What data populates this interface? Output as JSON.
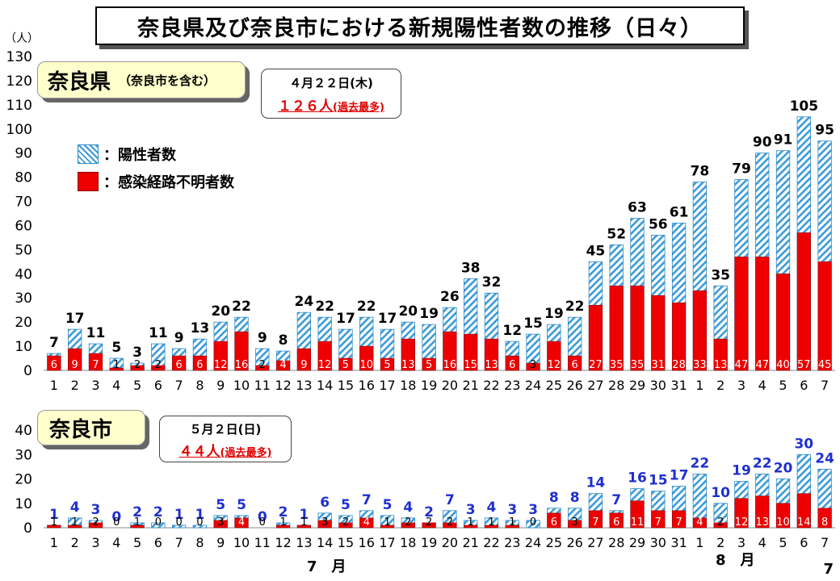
{
  "title": "奈良県及び奈良市における新規陽性者数の推移（日々）",
  "unit_label": "（人）",
  "legend": {
    "positive": "：陽性者数",
    "unknown": "：感染経路不明者数"
  },
  "month_labels": [
    "7　月",
    "8　月"
  ],
  "page_number": "7",
  "colors": {
    "positive_stripe": "#3a9bd8",
    "unknown": "#ee0000",
    "total_top_prefecture": "#000000",
    "total_top_city": "#1f2fd0"
  },
  "prefecture": {
    "label": "奈良県",
    "sublabel": "（奈良市を含む）",
    "callout_date": "４月２２日(木)",
    "callout_record": "１２６人",
    "callout_note": "(過去最多)"
  },
  "city": {
    "label": "奈良市",
    "callout_date": "５月２日(日)",
    "callout_record": "４４人",
    "callout_note": "(過去最多)"
  },
  "chart_data": [
    {
      "type": "bar",
      "name": "奈良県",
      "categories": [
        "1",
        "2",
        "3",
        "4",
        "5",
        "6",
        "7",
        "8",
        "9",
        "10",
        "11",
        "12",
        "13",
        "14",
        "15",
        "16",
        "17",
        "18",
        "19",
        "20",
        "21",
        "22",
        "23",
        "24",
        "25",
        "26",
        "27",
        "28",
        "29",
        "30",
        "31",
        "1",
        "2",
        "3",
        "4",
        "5",
        "6",
        "7"
      ],
      "series": [
        {
          "name": "陽性者数",
          "values": [
            7,
            17,
            11,
            5,
            3,
            11,
            9,
            13,
            20,
            22,
            9,
            8,
            24,
            22,
            17,
            22,
            17,
            20,
            19,
            26,
            38,
            32,
            12,
            15,
            19,
            22,
            45,
            52,
            63,
            56,
            61,
            78,
            35,
            79,
            90,
            91,
            105,
            95
          ]
        },
        {
          "name": "感染経路不明者数",
          "values": [
            6,
            9,
            7,
            1,
            2,
            2,
            6,
            6,
            12,
            16,
            2,
            4,
            9,
            12,
            5,
            10,
            5,
            13,
            5,
            16,
            15,
            13,
            6,
            3,
            12,
            6,
            27,
            35,
            35,
            31,
            28,
            33,
            13,
            47,
            47,
            40,
            57,
            45
          ]
        }
      ],
      "ylabel": "（人）",
      "ylim": [
        0,
        130
      ],
      "yticks": [
        0,
        10,
        20,
        30,
        40,
        50,
        60,
        70,
        80,
        90,
        100,
        110,
        120,
        130
      ]
    },
    {
      "type": "bar",
      "name": "奈良市",
      "categories": [
        "1",
        "2",
        "3",
        "4",
        "5",
        "6",
        "7",
        "8",
        "9",
        "10",
        "11",
        "12",
        "13",
        "14",
        "15",
        "16",
        "17",
        "18",
        "19",
        "20",
        "21",
        "22",
        "23",
        "24",
        "25",
        "26",
        "27",
        "28",
        "29",
        "30",
        "31",
        "1",
        "2",
        "3",
        "4",
        "5",
        "6",
        "7"
      ],
      "series": [
        {
          "name": "陽性者数",
          "values": [
            1,
            4,
            3,
            0,
            2,
            2,
            1,
            1,
            5,
            5,
            0,
            2,
            1,
            6,
            5,
            7,
            5,
            4,
            2,
            7,
            3,
            4,
            3,
            3,
            8,
            8,
            14,
            7,
            16,
            15,
            17,
            22,
            10,
            19,
            22,
            20,
            30,
            24
          ]
        },
        {
          "name": "感染経路不明者数",
          "values": [
            1,
            1,
            2,
            0,
            1,
            0,
            0,
            0,
            3,
            4,
            0,
            1,
            1,
            3,
            2,
            4,
            1,
            2,
            2,
            2,
            1,
            1,
            1,
            0,
            6,
            3,
            7,
            6,
            11,
            7,
            7,
            4,
            2,
            12,
            13,
            10,
            14,
            8
          ]
        }
      ],
      "ylim": [
        0,
        40
      ],
      "yticks": [
        0,
        10,
        20,
        30,
        40
      ]
    }
  ]
}
